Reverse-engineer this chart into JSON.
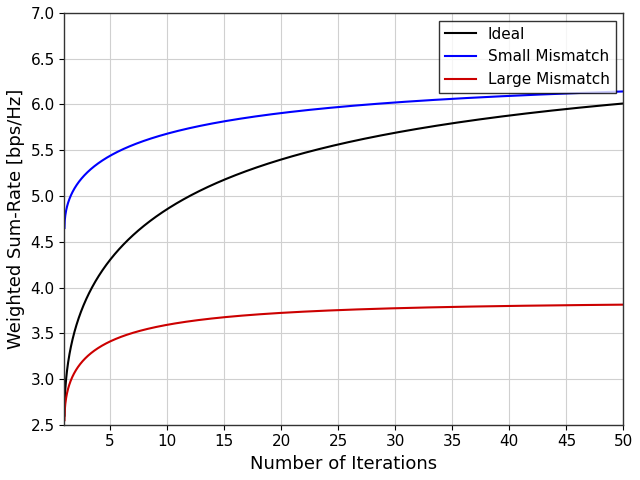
{
  "xlabel": "Number of Iterations",
  "ylabel": "Weighted Sum-Rate [bps/Hz]",
  "xlim": [
    1,
    50
  ],
  "ylim": [
    2.5,
    7.0
  ],
  "yticks": [
    2.5,
    3.0,
    3.5,
    4.0,
    4.5,
    5.0,
    5.5,
    6.0,
    6.5,
    7.0
  ],
  "xticks": [
    5,
    10,
    15,
    20,
    25,
    30,
    35,
    40,
    45,
    50
  ],
  "lines": [
    {
      "label": "Ideal",
      "color": "#000000",
      "linewidth": 1.5,
      "y1": 2.6,
      "asymptote": 6.57,
      "rise_rate": 0.28
    },
    {
      "label": "Small Mismatch",
      "color": "#0000FF",
      "linewidth": 1.5,
      "y1": 4.65,
      "asymptote": 6.32,
      "rise_rate": 0.32
    },
    {
      "label": "Large Mismatch",
      "color": "#CC0000",
      "linewidth": 1.5,
      "y1": 2.55,
      "asymptote": 3.84,
      "rise_rate": 0.55
    }
  ],
  "legend_loc": "upper right",
  "legend_fontsize": 11,
  "grid": true,
  "grid_color": "#d0d0d0",
  "grid_linewidth": 0.8,
  "background_color": "#ffffff",
  "figure_facecolor": "#ffffff",
  "tick_labelsize": 11,
  "xlabel_fontsize": 13,
  "ylabel_fontsize": 13
}
